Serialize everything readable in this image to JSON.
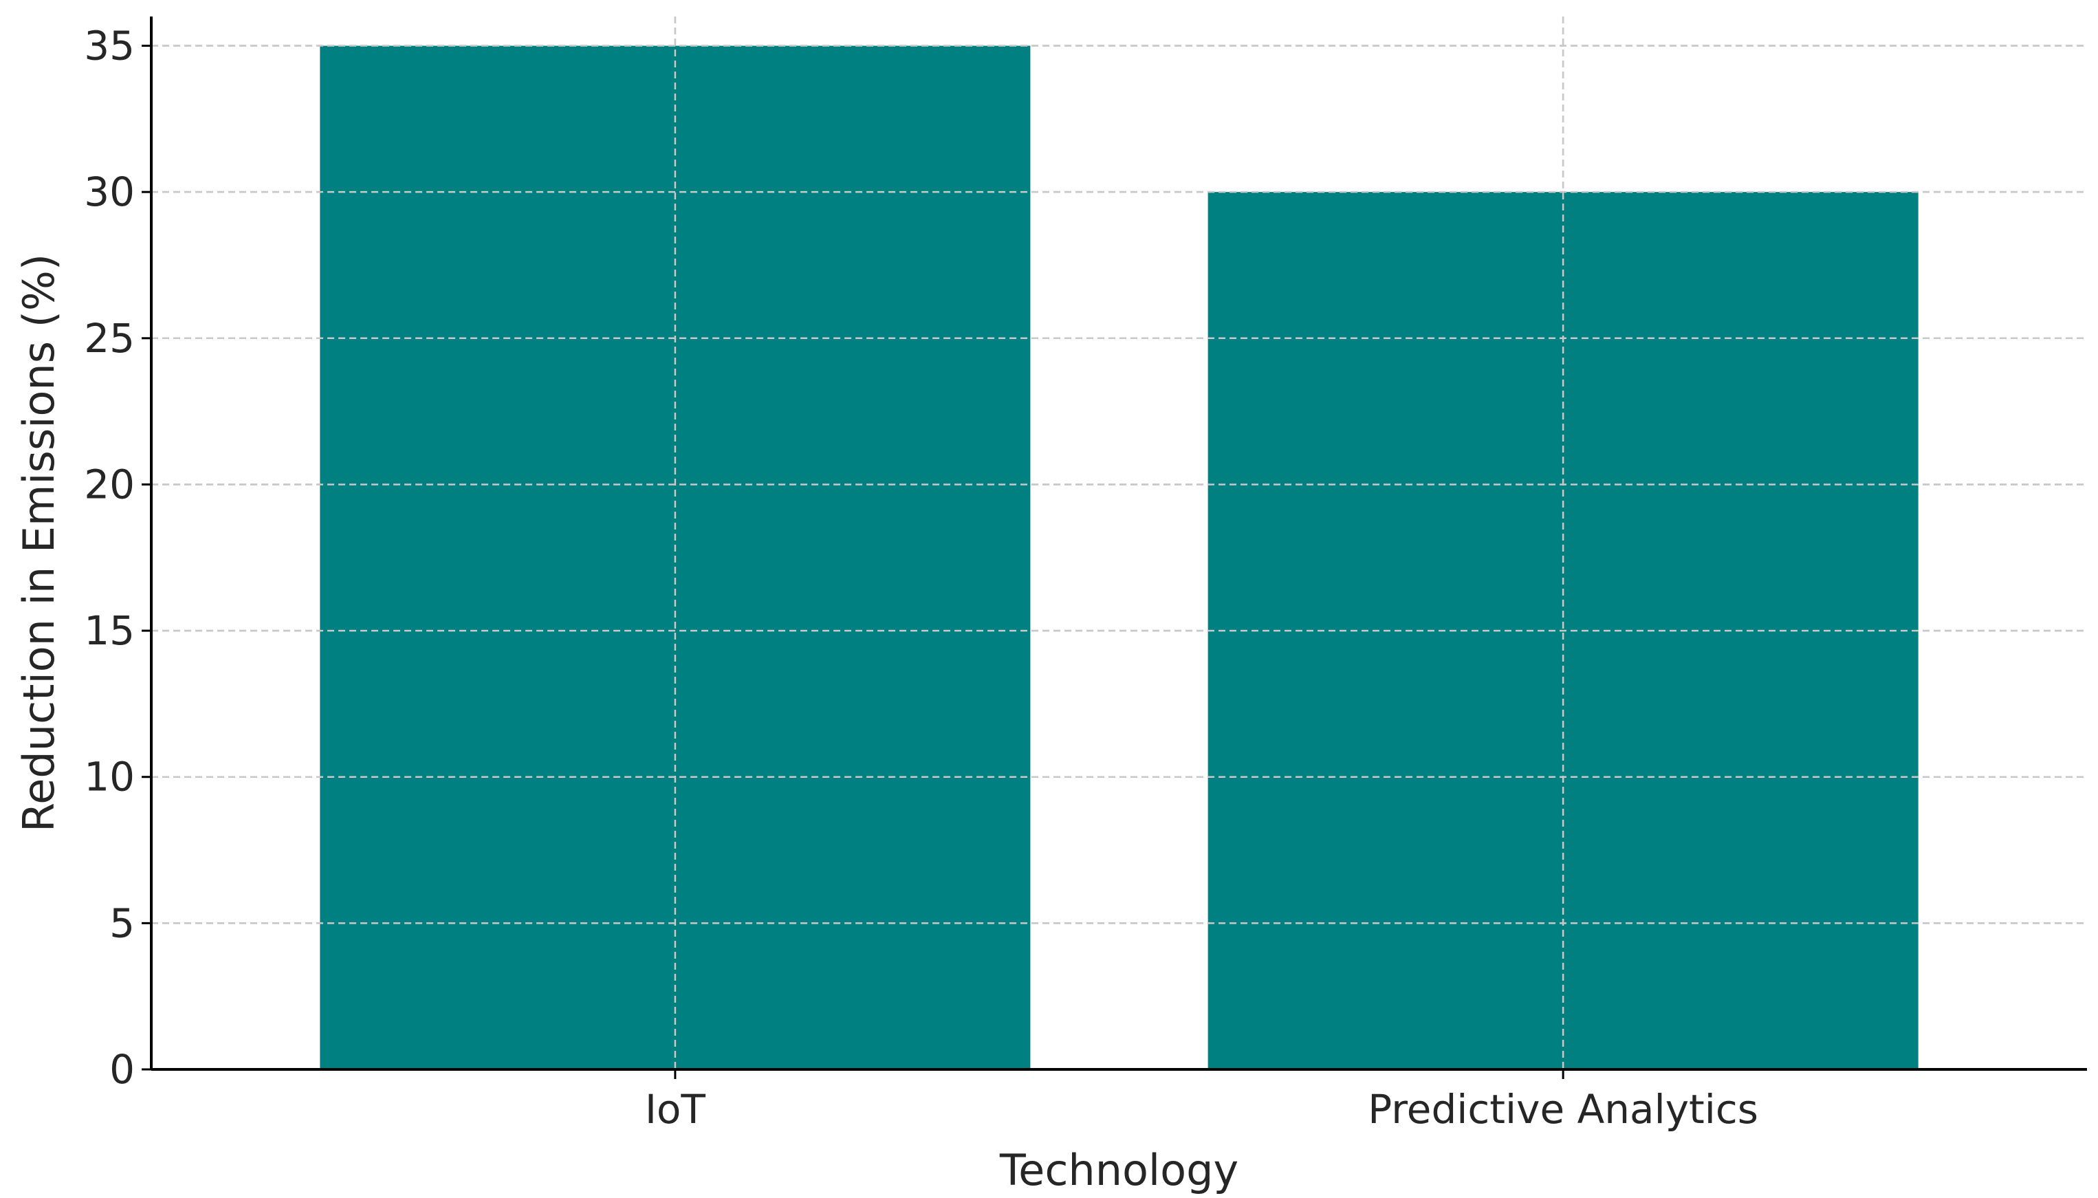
{
  "chart_data": {
    "type": "bar",
    "categories": [
      "IoT",
      "Predictive Analytics"
    ],
    "values": [
      35,
      30
    ],
    "title": "",
    "xlabel": "Technology",
    "ylabel": "Reduction in Emissions (%)",
    "ylim": [
      0,
      36
    ],
    "yticks": [
      0,
      5,
      10,
      15,
      20,
      25,
      30,
      35
    ],
    "grid": true,
    "bar_color": "#008080",
    "grid_color": "#c8c8c8"
  }
}
